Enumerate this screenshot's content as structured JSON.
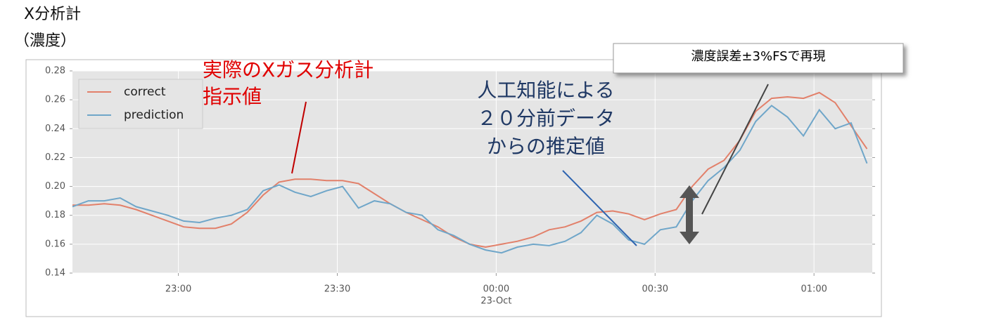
{
  "chart_data": {
    "type": "line",
    "ylabel_lines": [
      "X分析計",
      "（濃度）"
    ],
    "x": [
      "22:40",
      "22:43",
      "22:46",
      "22:49",
      "22:52",
      "22:55",
      "22:58",
      "23:01",
      "23:04",
      "23:07",
      "23:10",
      "23:13",
      "23:16",
      "23:19",
      "23:22",
      "23:25",
      "23:28",
      "23:31",
      "23:34",
      "23:37",
      "23:40",
      "23:43",
      "23:46",
      "23:49",
      "23:52",
      "23:55",
      "23:58",
      "00:01",
      "00:04",
      "00:07",
      "00:10",
      "00:13",
      "00:16",
      "00:19",
      "00:22",
      "00:25",
      "00:28",
      "00:31",
      "00:34",
      "00:37",
      "00:40",
      "00:43",
      "00:46",
      "00:49",
      "00:52",
      "00:55",
      "00:58",
      "01:01",
      "01:04",
      "01:07",
      "01:10"
    ],
    "series": [
      {
        "name": "correct",
        "color": "#e2806a",
        "values": [
          0.187,
          0.187,
          0.188,
          0.187,
          0.184,
          0.18,
          0.176,
          0.172,
          0.171,
          0.171,
          0.174,
          0.182,
          0.194,
          0.203,
          0.205,
          0.205,
          0.204,
          0.204,
          0.202,
          0.195,
          0.188,
          0.182,
          0.177,
          0.172,
          0.165,
          0.16,
          0.158,
          0.16,
          0.162,
          0.165,
          0.17,
          0.172,
          0.176,
          0.182,
          0.183,
          0.181,
          0.177,
          0.181,
          0.184,
          0.2,
          0.212,
          0.218,
          0.232,
          0.252,
          0.261,
          0.262,
          0.261,
          0.265,
          0.258,
          0.242,
          0.226
        ]
      },
      {
        "name": "prediction",
        "color": "#6fa6c9",
        "values": [
          0.186,
          0.19,
          0.19,
          0.192,
          0.186,
          0.183,
          0.18,
          0.176,
          0.175,
          0.178,
          0.18,
          0.184,
          0.197,
          0.201,
          0.196,
          0.193,
          0.197,
          0.2,
          0.185,
          0.19,
          0.188,
          0.182,
          0.18,
          0.17,
          0.166,
          0.16,
          0.156,
          0.154,
          0.158,
          0.16,
          0.159,
          0.162,
          0.168,
          0.18,
          0.174,
          0.163,
          0.16,
          0.17,
          0.172,
          0.19,
          0.204,
          0.213,
          0.225,
          0.245,
          0.256,
          0.248,
          0.235,
          0.253,
          0.24,
          0.244,
          0.216
        ]
      }
    ],
    "xlim": [
      "22:40",
      "01:11"
    ],
    "xticks": [
      "23:00",
      "23:30",
      "00:00",
      "00:30",
      "01:00"
    ],
    "x_date_label": "23-Oct",
    "ylim": [
      0.14,
      0.28
    ],
    "yticks": [
      0.14,
      0.16,
      0.18,
      {
        "value": 0.2,
        "label": "0.20"
      },
      0.22,
      0.24,
      0.26,
      0.28
    ],
    "grid": true,
    "legend": "upper-left",
    "annotations": [
      {
        "lines": [
          "実際のXガス分析計",
          "指示値"
        ],
        "color": "#e00000"
      },
      {
        "lines": [
          "人工知能による",
          "２０分前データ",
          "からの推定値"
        ],
        "color": "#1f3864"
      },
      {
        "lines": [
          "濃度誤差±3%FSで再現"
        ],
        "color": "#000000"
      }
    ]
  }
}
